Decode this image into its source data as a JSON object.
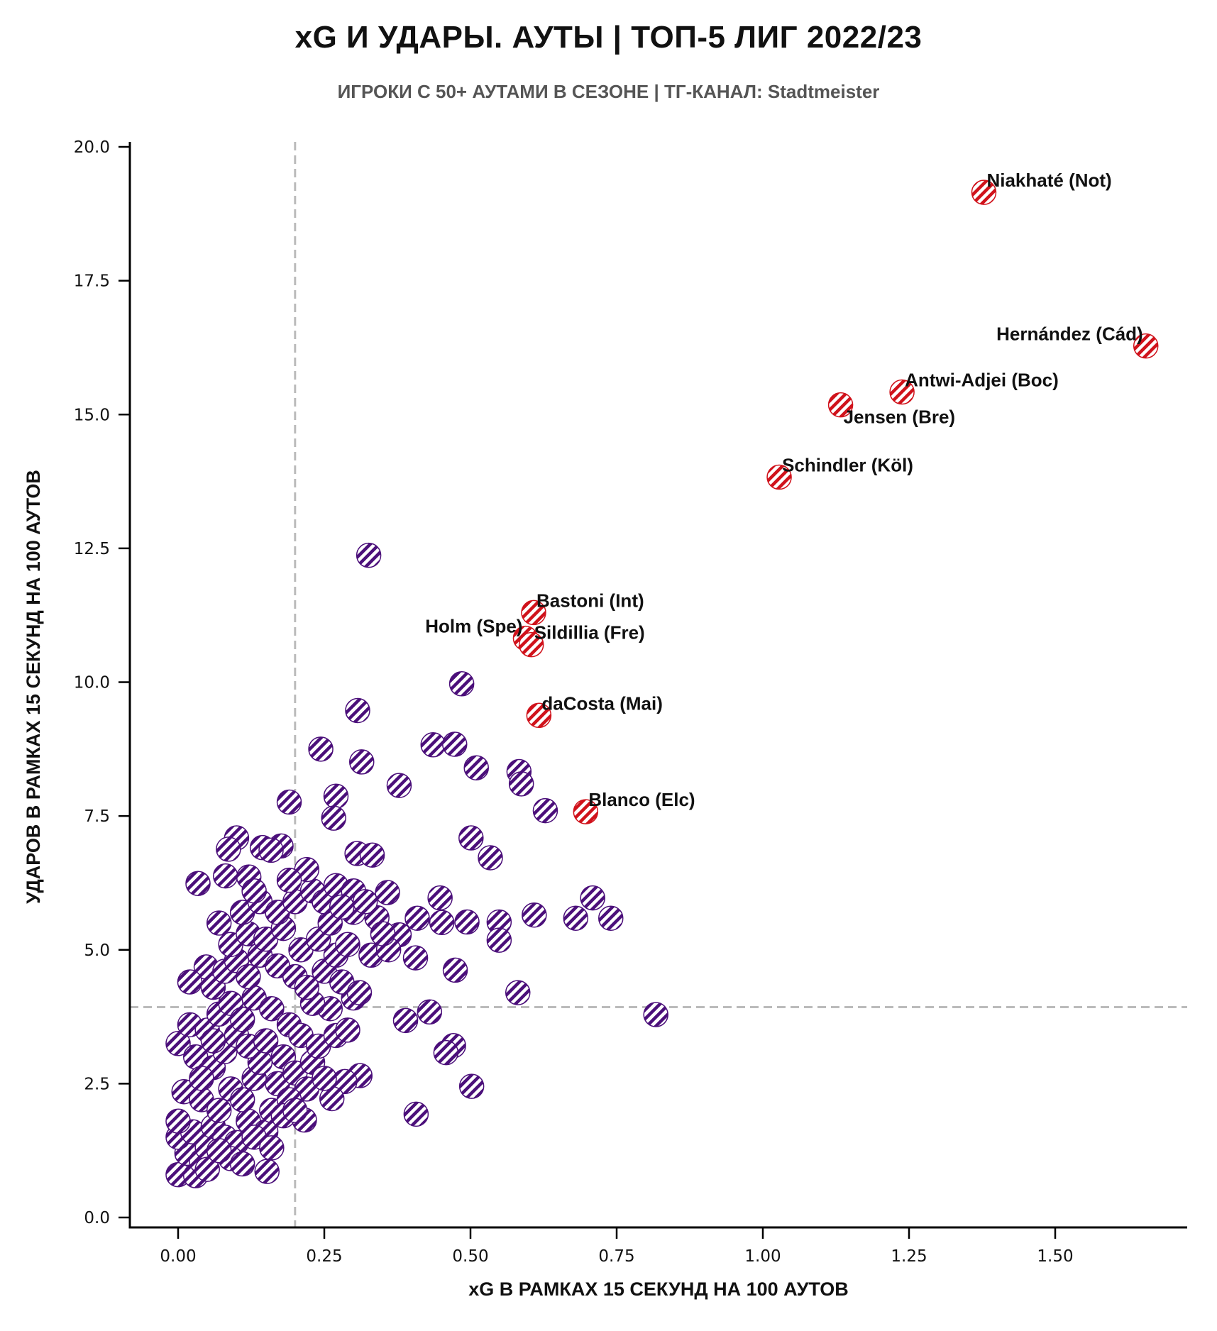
{
  "title": "xG И УДАРЫ. АУТЫ | ТОП-5 ЛИГ 2022/23",
  "subtitle": "ИГРОКИ С 50+ АУТАМИ В СЕЗОНЕ | ТГ-КАНАЛ: Stadtmeister",
  "colors": {
    "highlight": "#d0121b",
    "base": "#4b0f7a",
    "reference_line": "#bbbbbb",
    "axis": "#000000"
  },
  "chart_data": {
    "type": "scatter",
    "title": "xG И УДАРЫ. АУТЫ | ТОП-5 ЛИГ 2022/23",
    "subtitle": "ИГРОКИ С 50+ АУТАМИ В СЕЗОНЕ | ТГ-КАНАЛ: Stadtmeister",
    "xlabel": "xG В РАМКАХ 15 СЕКУНД НА 100 АУТОВ",
    "ylabel": "УДАРОВ В РАМКАХ 15 СЕКУНД НА 100 АУТОВ",
    "xlim": [
      -0.08,
      1.74
    ],
    "ylim": [
      -0.15,
      20.2
    ],
    "xticks": [
      0.0,
      0.25,
      0.5,
      0.75,
      1.0,
      1.25,
      1.5
    ],
    "xtick_labels": [
      "0.00",
      "0.25",
      "0.50",
      "0.75",
      "1.00",
      "1.25",
      "1.50"
    ],
    "yticks": [
      0.0,
      2.5,
      5.0,
      7.5,
      10.0,
      12.5,
      15.0,
      17.5,
      20.0
    ],
    "ytick_labels": [
      "0.0",
      "2.5",
      "5.0",
      "7.5",
      "10.0",
      "12.5",
      "15.0",
      "17.5",
      "20.0"
    ],
    "grid": false,
    "reference_lines": {
      "x": 0.2,
      "y": 3.93
    },
    "highlighted": [
      {
        "label": "Niakhaté (Not)",
        "x": 1.378,
        "y": 19.15,
        "label_side": "right"
      },
      {
        "label": "Hernández (Cád)",
        "x": 1.655,
        "y": 16.28,
        "label_side": "left"
      },
      {
        "label": "Antwi-Adjei (Boc)",
        "x": 1.238,
        "y": 15.42,
        "label_side": "right"
      },
      {
        "label": "Jensen (Bre)",
        "x": 1.133,
        "y": 15.18,
        "label_side": "below-right"
      },
      {
        "label": "Schindler (Köl)",
        "x": 1.028,
        "y": 13.83,
        "label_side": "right"
      },
      {
        "label": "Bastoni (Int)",
        "x": 0.608,
        "y": 11.3,
        "label_side": "right"
      },
      {
        "label": "Holm (Spe)",
        "x": 0.594,
        "y": 10.82,
        "label_side": "left"
      },
      {
        "label": "Sildillia (Fre)",
        "x": 0.604,
        "y": 10.7,
        "label_side": "right"
      },
      {
        "label": "daCosta (Mai)",
        "x": 0.617,
        "y": 9.38,
        "label_side": "right"
      },
      {
        "label": "Blanco (Elc)",
        "x": 0.697,
        "y": 7.58,
        "label_side": "right"
      }
    ],
    "others": [
      [
        0.326,
        12.37
      ],
      [
        0.485,
        9.97
      ],
      [
        0.307,
        9.47
      ],
      [
        0.244,
        8.75
      ],
      [
        0.314,
        8.51
      ],
      [
        0.436,
        8.83
      ],
      [
        0.473,
        8.84
      ],
      [
        0.51,
        8.4
      ],
      [
        0.583,
        8.33
      ],
      [
        0.587,
        8.1
      ],
      [
        0.378,
        8.07
      ],
      [
        0.27,
        7.87
      ],
      [
        0.19,
        7.76
      ],
      [
        0.266,
        7.46
      ],
      [
        0.628,
        7.6
      ],
      [
        0.1,
        7.09
      ],
      [
        0.501,
        7.09
      ],
      [
        0.086,
        6.88
      ],
      [
        0.144,
        6.91
      ],
      [
        0.176,
        6.94
      ],
      [
        0.159,
        6.86
      ],
      [
        0.306,
        6.8
      ],
      [
        0.332,
        6.77
      ],
      [
        0.534,
        6.72
      ],
      [
        0.081,
        6.38
      ],
      [
        0.121,
        6.36
      ],
      [
        0.034,
        6.24
      ],
      [
        0.358,
        6.07
      ],
      [
        0.448,
        5.97
      ],
      [
        0.709,
        5.97
      ],
      [
        0.609,
        5.65
      ],
      [
        0.68,
        5.59
      ],
      [
        0.74,
        5.59
      ],
      [
        0.494,
        5.52
      ],
      [
        0.451,
        5.51
      ],
      [
        0.409,
        5.59
      ],
      [
        0.549,
        5.52
      ],
      [
        0.549,
        5.18
      ],
      [
        0.378,
        5.28
      ],
      [
        0.406,
        4.85
      ],
      [
        0.474,
        4.62
      ],
      [
        0.048,
        4.68
      ],
      [
        0.581,
        4.2
      ],
      [
        0.817,
        3.79
      ],
      [
        0.43,
        3.84
      ],
      [
        0.389,
        3.68
      ],
      [
        0.471,
        3.21
      ],
      [
        0.458,
        3.08
      ],
      [
        0.502,
        2.45
      ],
      [
        0.311,
        2.65
      ],
      [
        0.285,
        2.54
      ],
      [
        0.263,
        2.22
      ],
      [
        0.216,
        1.82
      ],
      [
        0.407,
        1.93
      ],
      [
        0.152,
        0.86
      ],
      [
        0.0,
        0.8
      ],
      [
        0.03,
        0.78
      ],
      [
        0.015,
        1.2
      ],
      [
        0.04,
        1.05
      ],
      [
        0.0,
        1.5
      ],
      [
        0.025,
        1.6
      ],
      [
        0.05,
        1.3
      ],
      [
        0.06,
        1.7
      ],
      [
        0.0,
        1.8
      ],
      [
        0.01,
        2.35
      ],
      [
        0.04,
        2.2
      ],
      [
        0.07,
        2.0
      ],
      [
        0.08,
        1.5
      ],
      [
        0.1,
        1.4
      ],
      [
        0.09,
        2.4
      ],
      [
        0.12,
        1.8
      ],
      [
        0.13,
        2.6
      ],
      [
        0.11,
        2.2
      ],
      [
        0.15,
        1.6
      ],
      [
        0.16,
        2.0
      ],
      [
        0.17,
        2.5
      ],
      [
        0.14,
        2.9
      ],
      [
        0.0,
        3.25
      ],
      [
        0.03,
        3.0
      ],
      [
        0.06,
        2.8
      ],
      [
        0.08,
        3.1
      ],
      [
        0.1,
        3.4
      ],
      [
        0.12,
        3.2
      ],
      [
        0.15,
        3.3
      ],
      [
        0.18,
        3.0
      ],
      [
        0.2,
        2.7
      ],
      [
        0.22,
        2.4
      ],
      [
        0.23,
        2.9
      ],
      [
        0.25,
        2.6
      ],
      [
        0.19,
        2.2
      ],
      [
        0.02,
        3.6
      ],
      [
        0.05,
        3.5
      ],
      [
        0.07,
        3.8
      ],
      [
        0.09,
        4.0
      ],
      [
        0.11,
        3.7
      ],
      [
        0.13,
        4.1
      ],
      [
        0.16,
        3.9
      ],
      [
        0.19,
        3.6
      ],
      [
        0.21,
        3.4
      ],
      [
        0.24,
        3.2
      ],
      [
        0.27,
        3.4
      ],
      [
        0.29,
        3.5
      ],
      [
        0.26,
        3.9
      ],
      [
        0.23,
        4.0
      ],
      [
        0.3,
        4.1
      ],
      [
        0.02,
        4.4
      ],
      [
        0.06,
        4.3
      ],
      [
        0.08,
        4.6
      ],
      [
        0.1,
        4.8
      ],
      [
        0.12,
        4.5
      ],
      [
        0.14,
        4.9
      ],
      [
        0.17,
        4.7
      ],
      [
        0.2,
        4.5
      ],
      [
        0.22,
        4.3
      ],
      [
        0.25,
        4.6
      ],
      [
        0.28,
        4.4
      ],
      [
        0.31,
        4.2
      ],
      [
        0.33,
        4.9
      ],
      [
        0.27,
        4.9
      ],
      [
        0.09,
        5.1
      ],
      [
        0.12,
        5.3
      ],
      [
        0.15,
        5.2
      ],
      [
        0.18,
        5.4
      ],
      [
        0.21,
        5.0
      ],
      [
        0.24,
        5.2
      ],
      [
        0.26,
        5.5
      ],
      [
        0.29,
        5.1
      ],
      [
        0.3,
        5.7
      ],
      [
        0.34,
        5.6
      ],
      [
        0.36,
        5.0
      ],
      [
        0.07,
        5.5
      ],
      [
        0.11,
        5.7
      ],
      [
        0.14,
        5.9
      ],
      [
        0.17,
        5.7
      ],
      [
        0.2,
        5.9
      ],
      [
        0.23,
        6.1
      ],
      [
        0.25,
        5.9
      ],
      [
        0.27,
        6.2
      ],
      [
        0.3,
        6.1
      ],
      [
        0.32,
        5.9
      ],
      [
        0.22,
        6.5
      ],
      [
        0.19,
        6.3
      ],
      [
        0.13,
        6.1
      ],
      [
        0.28,
        5.8
      ],
      [
        0.35,
        5.3
      ],
      [
        0.06,
        3.3
      ],
      [
        0.04,
        2.6
      ],
      [
        0.18,
        1.9
      ],
      [
        0.2,
        2.0
      ],
      [
        0.13,
        1.5
      ],
      [
        0.05,
        0.9
      ],
      [
        0.09,
        1.1
      ],
      [
        0.11,
        1.0
      ],
      [
        0.07,
        1.25
      ],
      [
        0.16,
        1.3
      ]
    ]
  }
}
